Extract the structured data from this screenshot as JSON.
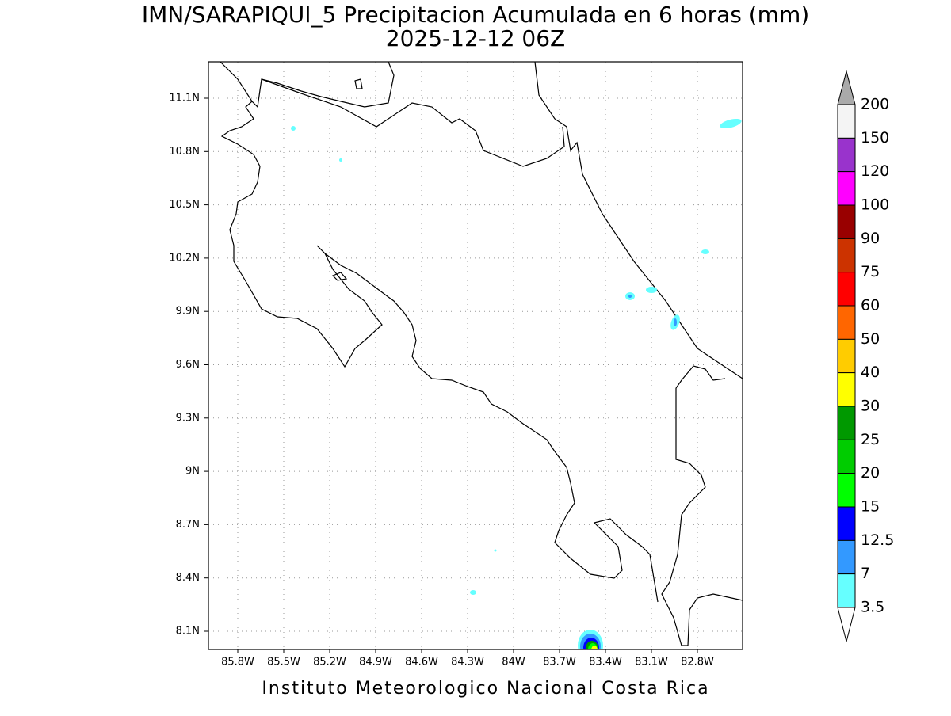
{
  "header": {
    "title": "IMN/SARAPIQUI_5 Precipitacion Acumulada en 6 horas (mm)",
    "subtitle": "2025-12-12 06Z"
  },
  "map": {
    "lat_ticks": [
      "11.1N",
      "10.8N",
      "10.5N",
      "10.2N",
      "9.9N",
      "9.6N",
      "9.3N",
      "9N",
      "8.7N",
      "8.4N",
      "8.1N"
    ],
    "lon_ticks": [
      "85.8W",
      "85.5W",
      "85.2W",
      "84.9W",
      "84.6W",
      "84.3W",
      "84W",
      "83.7W",
      "83.4W",
      "83.1W",
      "82.8W"
    ]
  },
  "legend": {
    "levels": [
      200,
      150,
      120,
      100,
      90,
      75,
      60,
      50,
      40,
      30,
      25,
      20,
      15,
      12.5,
      7,
      3.5
    ],
    "colors": [
      "#aaaaaa",
      "#f4f4f4",
      "#9933cc",
      "#ff00ff",
      "#990000",
      "#cc3300",
      "#ff0000",
      "#ff6600",
      "#ffcc00",
      "#ffff00",
      "#009900",
      "#00cc00",
      "#00ff00",
      "#0000ff",
      "#3399ff",
      "#66ffff",
      "#ffffff"
    ]
  },
  "footer": "Instituto Meteorologico Nacional Costa Rica"
}
